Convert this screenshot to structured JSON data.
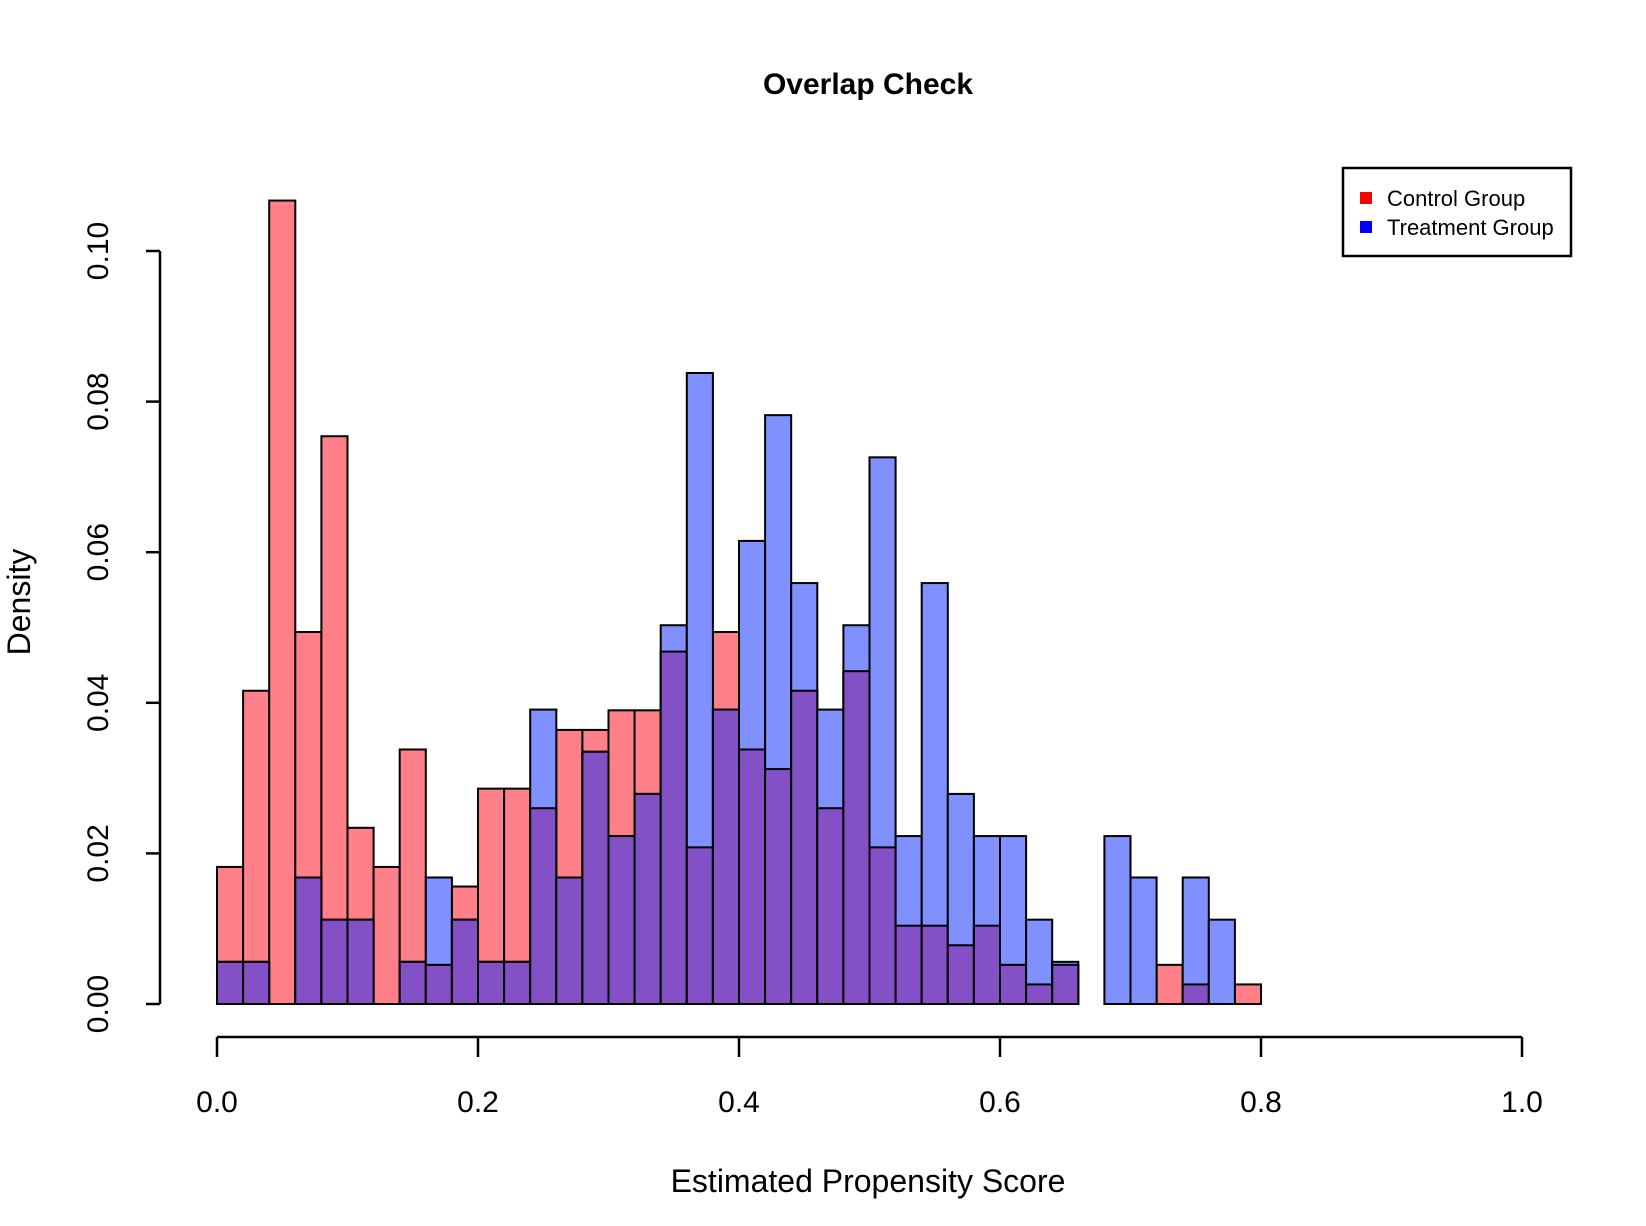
{
  "chart_data": {
    "type": "bar",
    "title": "Overlap Check",
    "xlabel": "Estimated Propensity Score",
    "ylabel": "Density",
    "xlim": [
      0.0,
      1.0
    ],
    "ylim": [
      0.0,
      0.1
    ],
    "x_ticks": [
      "0.0",
      "0.2",
      "0.4",
      "0.6",
      "0.8",
      "1.0"
    ],
    "y_ticks": [
      "0.00",
      "0.02",
      "0.04",
      "0.06",
      "0.08",
      "0.10"
    ],
    "bin_width": 0.02,
    "bin_starts": [
      0.0,
      0.02,
      0.04,
      0.06,
      0.08,
      0.1,
      0.12,
      0.14,
      0.16,
      0.18,
      0.2,
      0.22,
      0.24,
      0.26,
      0.28,
      0.3,
      0.32,
      0.34,
      0.36,
      0.38,
      0.4,
      0.42,
      0.44,
      0.46,
      0.48,
      0.5,
      0.52,
      0.54,
      0.56,
      0.58,
      0.6,
      0.62,
      0.64,
      0.66,
      0.68,
      0.7,
      0.72,
      0.74,
      0.76,
      0.78
    ],
    "series": [
      {
        "name": "Control Group",
        "color": "#ff0000",
        "fill": "#ff8088",
        "values": [
          0.0182,
          0.0416,
          0.1067,
          0.0494,
          0.0754,
          0.0234,
          0.0182,
          0.0338,
          0.0052,
          0.0156,
          0.0286,
          0.0286,
          0.026,
          0.0364,
          0.0364,
          0.039,
          0.039,
          0.0468,
          0.0208,
          0.0494,
          0.0338,
          0.0312,
          0.0416,
          0.026,
          0.0442,
          0.0208,
          0.0104,
          0.0104,
          0.0078,
          0.0104,
          0.0052,
          0.0026,
          0.0052,
          0.0,
          0.0,
          0.0,
          0.0052,
          0.0026,
          0.0,
          0.0026
        ]
      },
      {
        "name": "Treatment Group",
        "color": "#0000ff",
        "fill": "#8090ff",
        "values": [
          0.0056,
          0.0056,
          0.0,
          0.0168,
          0.0112,
          0.0112,
          0.0,
          0.0056,
          0.0168,
          0.0112,
          0.0056,
          0.0056,
          0.0391,
          0.0168,
          0.0335,
          0.0223,
          0.0279,
          0.0503,
          0.0838,
          0.0391,
          0.0615,
          0.0782,
          0.0559,
          0.0391,
          0.0503,
          0.0726,
          0.0223,
          0.0559,
          0.0279,
          0.0223,
          0.0223,
          0.0112,
          0.0056,
          0.0,
          0.0223,
          0.0168,
          0.0,
          0.0168,
          0.0112,
          0.0
        ]
      }
    ],
    "overlap_fill": "#8450c6",
    "legend": {
      "position": "top-right",
      "entries": [
        {
          "label": "Control Group",
          "color": "#ff0000"
        },
        {
          "label": "Treatment Group",
          "color": "#0000ff"
        }
      ]
    },
    "grid": false
  }
}
